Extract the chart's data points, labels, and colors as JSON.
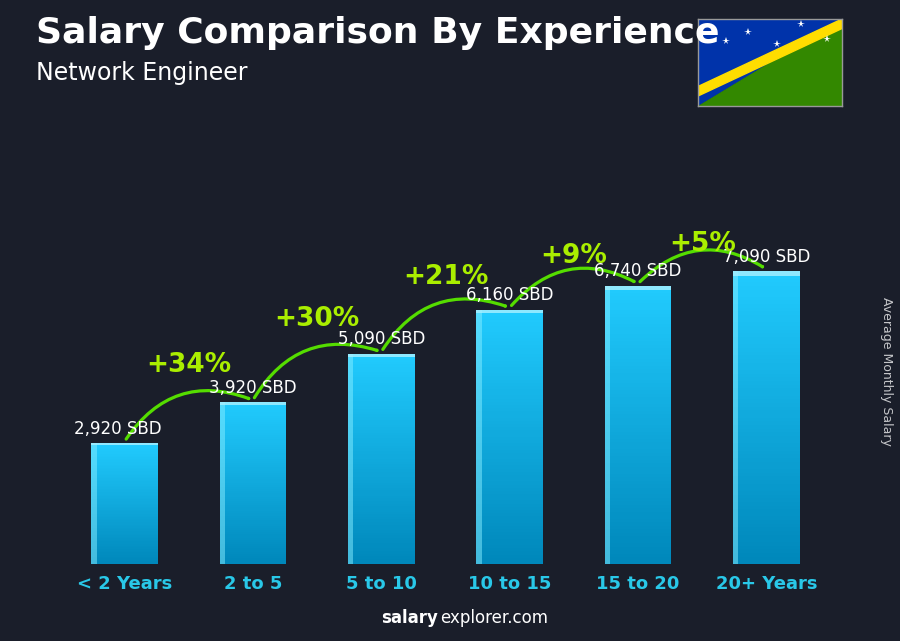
{
  "title": "Salary Comparison By Experience",
  "subtitle": "Network Engineer",
  "categories": [
    "< 2 Years",
    "2 to 5",
    "5 to 10",
    "10 to 15",
    "15 to 20",
    "20+ Years"
  ],
  "values": [
    2920,
    3920,
    5090,
    6160,
    6740,
    7090
  ],
  "value_labels": [
    "2,920 SBD",
    "3,920 SBD",
    "5,090 SBD",
    "6,160 SBD",
    "6,740 SBD",
    "7,090 SBD"
  ],
  "pct_labels": [
    "+34%",
    "+30%",
    "+21%",
    "+9%",
    "+5%"
  ],
  "bar_color_light": "#29c8e8",
  "bar_color_mid": "#1aaecc",
  "bar_color_dark": "#0077aa",
  "bar_highlight": "#55ddff",
  "bg_color": "#1a1e2a",
  "text_white": "#ffffff",
  "text_green": "#aaee00",
  "arrow_green": "#55dd00",
  "ylabel": "Average Monthly Salary",
  "footer_bold": "salary",
  "footer_normal": "explorer.com",
  "ylim": [
    0,
    9000
  ],
  "title_fontsize": 26,
  "subtitle_fontsize": 17,
  "cat_fontsize": 13,
  "val_fontsize": 12,
  "pct_fontsize": 19,
  "bar_width": 0.52
}
